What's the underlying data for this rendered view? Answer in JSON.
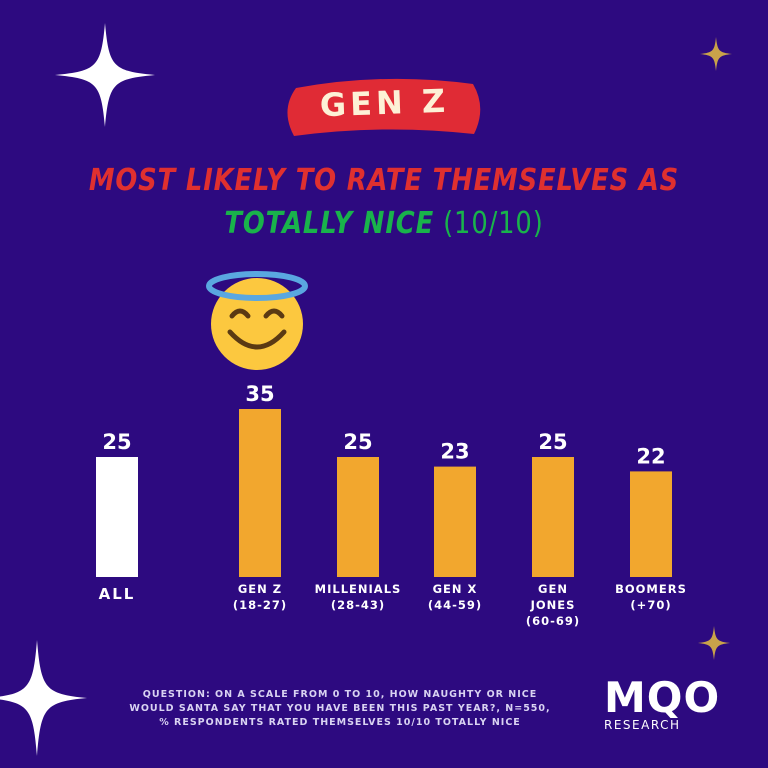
{
  "badge": {
    "label": "GEN Z"
  },
  "headline": {
    "line1": "MOST LIKELY TO RATE THEMSELVES AS",
    "line2_highlight": "TOTALLY NICE",
    "line2_rest": " (10/10)"
  },
  "colors": {
    "background": "#2d0a80",
    "badge": "#e02b35",
    "headline_red": "#e0302f",
    "headline_green": "#19b34b",
    "bar_all": "#ffffff",
    "bar_group": "#f2a72e",
    "text": "#ffffff",
    "star_gold": "#c9a24a"
  },
  "icons": {
    "emoji": "smiling-face-with-halo-icon",
    "sparkle": "sparkle-star-icon"
  },
  "chart_data": {
    "type": "bar",
    "categories": [
      [
        "ALL"
      ],
      [
        "GEN Z",
        "(18-27)"
      ],
      [
        "MILLENIALS",
        "(28-43)"
      ],
      [
        "GEN X",
        "(44-59)"
      ],
      [
        "GEN",
        "JONES",
        "(60-69)"
      ],
      [
        "BOOMERS",
        "(+70)"
      ]
    ],
    "values": [
      25,
      35,
      25,
      23,
      25,
      22
    ],
    "highlight": "GEN Z",
    "title": "MOST LIKELY TO RATE THEMSELVES AS TOTALLY NICE (10/10)",
    "ylim": [
      0,
      35
    ],
    "grid": false
  },
  "footnote": {
    "lines": [
      "QUESTION: ON A SCALE FROM 0 TO 10, HOW NAUGHTY OR NICE",
      "WOULD SANTA SAY THAT YOU HAVE BEEN THIS PAST YEAR?, N=550,",
      "% RESPONDENTS RATED THEMSELVES 10/10 TOTALLY NICE"
    ]
  },
  "logo": {
    "text": "MQO",
    "subtext": "RESEARCH"
  }
}
